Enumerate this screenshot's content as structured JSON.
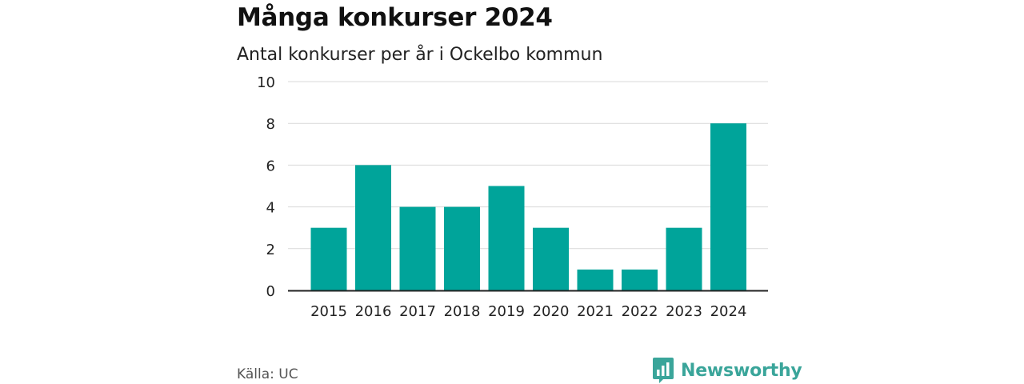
{
  "header": {
    "title": "Många konkurser 2024",
    "subtitle": "Antal konkurser per år i Ockelbo kommun"
  },
  "footer": {
    "source": "Källa: UC",
    "brand": "Newsworthy",
    "brand_icon": "bar-chart-logo-icon"
  },
  "colors": {
    "bar": "#00a49a",
    "grid": "#d9d9d9",
    "axis": "#222222",
    "brand": "#3aa59a"
  },
  "chart_data": {
    "type": "bar",
    "title": "Många konkurser 2024",
    "subtitle": "Antal konkurser per år i Ockelbo kommun",
    "xlabel": "",
    "ylabel": "",
    "categories": [
      "2015",
      "2016",
      "2017",
      "2018",
      "2019",
      "2020",
      "2021",
      "2022",
      "2023",
      "2024"
    ],
    "values": [
      3,
      6,
      4,
      4,
      5,
      3,
      1,
      1,
      3,
      8
    ],
    "ylim": [
      0,
      10
    ],
    "yticks": [
      0,
      2,
      4,
      6,
      8,
      10
    ],
    "grid": true,
    "legend": "none"
  }
}
